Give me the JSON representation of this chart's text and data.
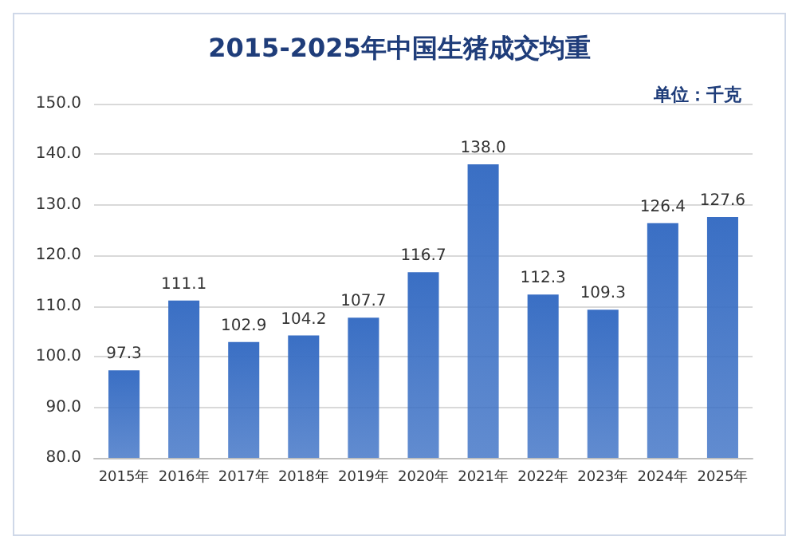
{
  "chart_data": {
    "type": "bar",
    "title": "2015-2025年中国生猪成交均重",
    "subtitle": "单位：千克",
    "categories": [
      "2015年",
      "2016年",
      "2017年",
      "2018年",
      "2019年",
      "2020年",
      "2021年",
      "2022年",
      "2023年",
      "2024年",
      "2025年"
    ],
    "values": [
      97.3,
      111.1,
      102.9,
      104.2,
      107.7,
      116.7,
      138.0,
      112.3,
      109.3,
      126.4,
      127.6
    ],
    "value_labels": [
      "97.3",
      "111.1",
      "102.9",
      "104.2",
      "107.7",
      "116.7",
      "138.0",
      "112.3",
      "109.3",
      "126.4",
      "127.6"
    ],
    "color": "#3a6fc4",
    "ylim": [
      80,
      150
    ],
    "yticks": [
      {
        "value": 80,
        "label": "80.0"
      },
      {
        "value": 90,
        "label": "90.0"
      },
      {
        "value": 100,
        "label": "100.0"
      },
      {
        "value": 110,
        "label": "110.0"
      },
      {
        "value": 120,
        "label": "120.0"
      },
      {
        "value": 130,
        "label": "130.0"
      },
      {
        "value": 140,
        "label": "140.0"
      },
      {
        "value": 150,
        "label": "150.0"
      }
    ],
    "grid": "y"
  }
}
